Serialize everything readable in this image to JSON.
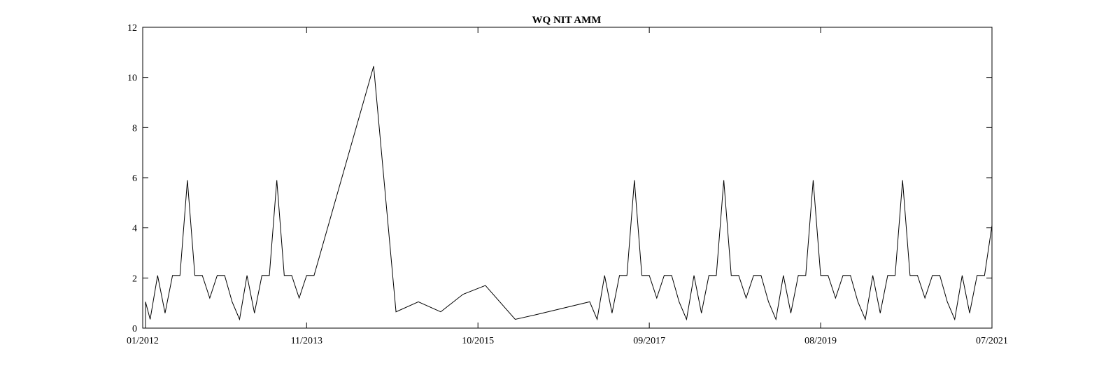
{
  "chart_data": {
    "type": "line",
    "title": "WQ NIT AMM",
    "xlabel": "",
    "ylabel": "",
    "ylim": [
      0,
      12
    ],
    "yticks": [
      "0",
      "2",
      "4",
      "6",
      "8",
      "10",
      "12"
    ],
    "xlim": [
      "2012-01",
      "2021-07"
    ],
    "xticks": [
      "01/2012",
      "11/2013",
      "10/2015",
      "09/2017",
      "08/2019",
      "07/2021"
    ],
    "grid": false,
    "series": [
      {
        "color": "#000000",
        "points": [
          [
            "2012-01",
            0
          ],
          [
            "2012-01",
            1.05
          ],
          [
            "2012-02",
            0.35
          ],
          [
            "2012-03",
            2.1
          ],
          [
            "2012-04",
            0.6
          ],
          [
            "2012-05",
            2.1
          ],
          [
            "2012-06",
            2.1
          ],
          [
            "2012-07",
            5.9
          ],
          [
            "2012-08",
            2.1
          ],
          [
            "2012-09",
            2.1
          ],
          [
            "2012-10",
            1.2
          ],
          [
            "2012-11",
            2.1
          ],
          [
            "2012-12",
            2.1
          ],
          [
            "2013-01",
            1.05
          ],
          [
            "2013-02",
            0.35
          ],
          [
            "2013-03",
            2.1
          ],
          [
            "2013-04",
            0.6
          ],
          [
            "2013-05",
            2.1
          ],
          [
            "2013-06",
            2.1
          ],
          [
            "2013-07",
            5.9
          ],
          [
            "2013-08",
            2.1
          ],
          [
            "2013-09",
            2.1
          ],
          [
            "2013-10",
            1.2
          ],
          [
            "2013-11",
            2.1
          ],
          [
            "2013-12",
            2.1
          ],
          [
            "2014-08",
            10.45
          ],
          [
            "2014-11",
            0.65
          ],
          [
            "2015-02",
            1.05
          ],
          [
            "2015-05",
            0.65
          ],
          [
            "2015-08",
            1.35
          ],
          [
            "2015-11",
            1.7
          ],
          [
            "2016-03",
            0.35
          ],
          [
            "2016-06",
            0.55
          ],
          [
            "2017-01",
            1.05
          ],
          [
            "2017-02",
            0.35
          ],
          [
            "2017-03",
            2.1
          ],
          [
            "2017-04",
            0.6
          ],
          [
            "2017-05",
            2.1
          ],
          [
            "2017-06",
            2.1
          ],
          [
            "2017-07",
            5.9
          ],
          [
            "2017-08",
            2.1
          ],
          [
            "2017-09",
            2.1
          ],
          [
            "2017-10",
            1.2
          ],
          [
            "2017-11",
            2.1
          ],
          [
            "2017-12",
            2.1
          ],
          [
            "2018-01",
            1.05
          ],
          [
            "2018-02",
            0.35
          ],
          [
            "2018-03",
            2.1
          ],
          [
            "2018-04",
            0.6
          ],
          [
            "2018-05",
            2.1
          ],
          [
            "2018-06",
            2.1
          ],
          [
            "2018-07",
            5.9
          ],
          [
            "2018-08",
            2.1
          ],
          [
            "2018-09",
            2.1
          ],
          [
            "2018-10",
            1.2
          ],
          [
            "2018-11",
            2.1
          ],
          [
            "2018-12",
            2.1
          ],
          [
            "2019-01",
            1.05
          ],
          [
            "2019-02",
            0.35
          ],
          [
            "2019-03",
            2.1
          ],
          [
            "2019-04",
            0.6
          ],
          [
            "2019-05",
            2.1
          ],
          [
            "2019-06",
            2.1
          ],
          [
            "2019-07",
            5.9
          ],
          [
            "2019-08",
            2.1
          ],
          [
            "2019-09",
            2.1
          ],
          [
            "2019-10",
            1.2
          ],
          [
            "2019-11",
            2.1
          ],
          [
            "2019-12",
            2.1
          ],
          [
            "2020-01",
            1.05
          ],
          [
            "2020-02",
            0.35
          ],
          [
            "2020-03",
            2.1
          ],
          [
            "2020-04",
            0.6
          ],
          [
            "2020-05",
            2.1
          ],
          [
            "2020-06",
            2.1
          ],
          [
            "2020-07",
            5.9
          ],
          [
            "2020-08",
            2.1
          ],
          [
            "2020-09",
            2.1
          ],
          [
            "2020-10",
            1.2
          ],
          [
            "2020-11",
            2.1
          ],
          [
            "2020-12",
            2.1
          ],
          [
            "2021-01",
            1.05
          ],
          [
            "2021-02",
            0.35
          ],
          [
            "2021-03",
            2.1
          ],
          [
            "2021-04",
            0.6
          ],
          [
            "2021-05",
            2.1
          ],
          [
            "2021-06",
            2.1
          ],
          [
            "2021-07",
            4.1
          ]
        ]
      }
    ]
  }
}
